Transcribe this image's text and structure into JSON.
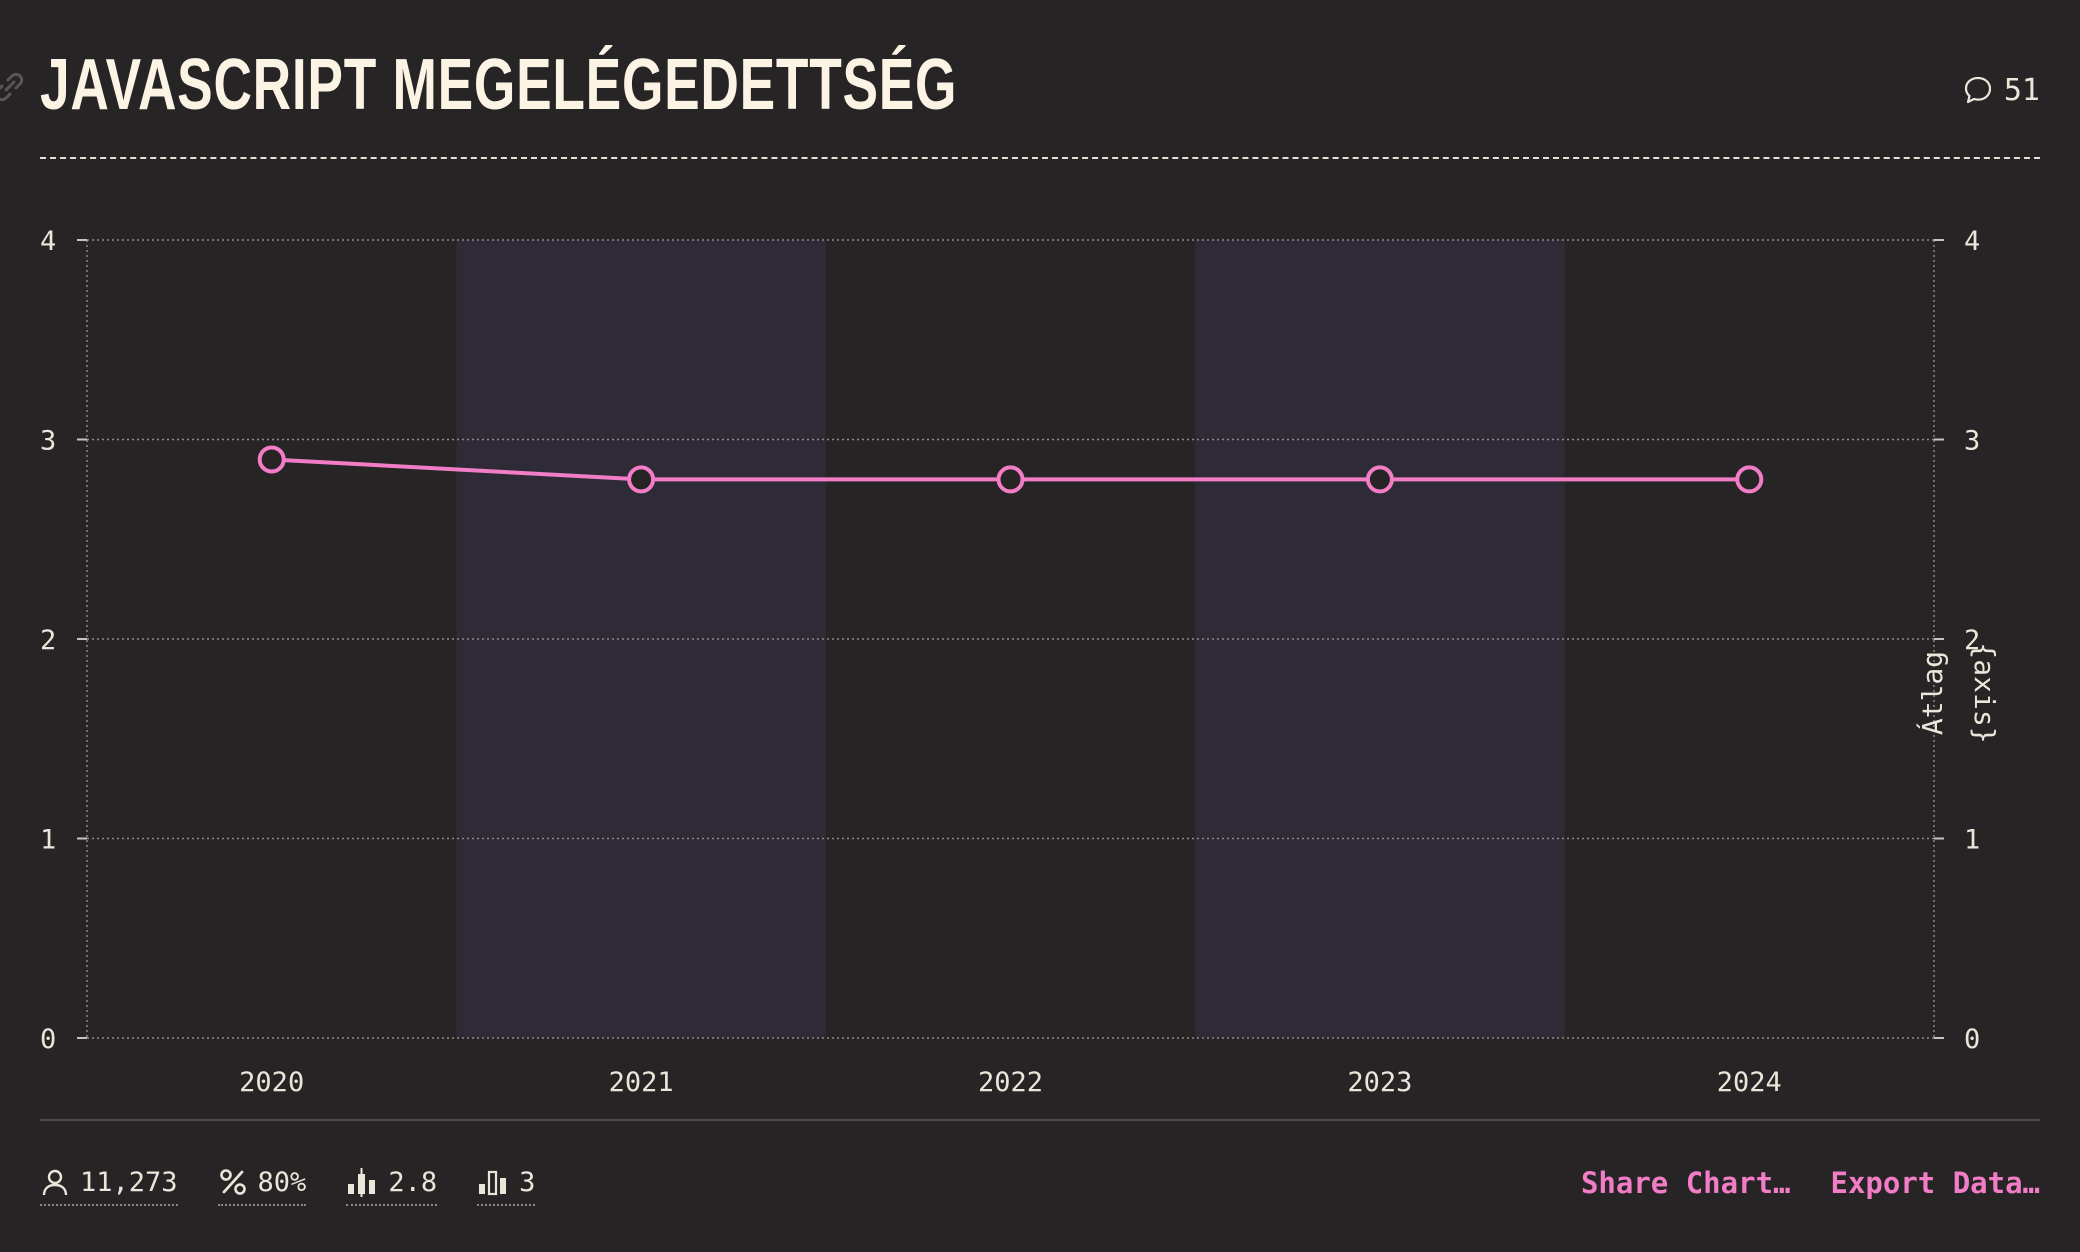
{
  "header": {
    "title": "JAVASCRIPT MEGELÉGEDETTSÉG",
    "comment_count": "51"
  },
  "chart_data": {
    "type": "line",
    "title": "JAVASCRIPT MEGELÉGEDETTSÉG",
    "categories": [
      "2020",
      "2021",
      "2022",
      "2023",
      "2024"
    ],
    "series": [
      {
        "values": [
          2.9,
          2.8,
          2.8,
          2.8,
          2.8
        ]
      }
    ],
    "ylim": [
      0,
      4
    ],
    "yticks": [
      "0",
      "1",
      "2",
      "3",
      "4"
    ],
    "right_axis_label": "Átlag",
    "right_axis_label_2": "{axis}",
    "grid": true,
    "band_color": "#2f2b36",
    "line_color": "#f27dc6"
  },
  "stats": [
    {
      "icon": "user-icon",
      "value": "11,273"
    },
    {
      "icon": "percent-icon",
      "value": "80%"
    },
    {
      "icon": "average-icon",
      "value": "2.8"
    },
    {
      "icon": "median-icon",
      "value": "3"
    }
  ],
  "actions": {
    "share": "Share Chart…",
    "export": "Export Data…"
  }
}
